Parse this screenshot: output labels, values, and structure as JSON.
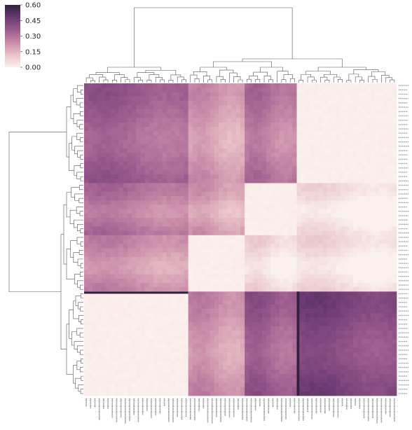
{
  "chart_data": {
    "type": "heatmap",
    "title": "",
    "xlabel": "",
    "ylabel": "",
    "clustered": true,
    "dendrograms": [
      "top",
      "left"
    ],
    "colormap": {
      "name": "cubehelix-light-purple",
      "stops": [
        "#faf0ec",
        "#e9c2c7",
        "#c98aa8",
        "#9c5a8e",
        "#6a3a72",
        "#33203f"
      ],
      "range": [
        0.0,
        0.6
      ]
    },
    "colorbar": {
      "ticks": [
        0.6,
        0.45,
        0.3,
        0.15,
        0.0
      ],
      "tick_labels": [
        "0.60",
        "0.45",
        "0.30",
        "0.15",
        "0.00"
      ]
    },
    "grid": false,
    "n_rows": 72,
    "n_cols": 72,
    "blocks": [
      {
        "name": "A",
        "size": 24
      },
      {
        "name": "B",
        "size": 13
      },
      {
        "name": "C",
        "size": 12
      },
      {
        "name": "D",
        "size": 23
      }
    ],
    "row_block_order": [
      "D",
      "C",
      "B",
      "A"
    ],
    "col_block_order": [
      "A",
      "B",
      "C",
      "D"
    ],
    "block_values": {
      "D": {
        "A": 0.34,
        "B": 0.2,
        "C": 0.28,
        "D": 0.0
      },
      "C": {
        "A": 0.28,
        "B": 0.18,
        "C": 0.0,
        "D": 0.02
      },
      "B": {
        "A": 0.22,
        "B": 0.0,
        "C": 0.04,
        "D": 0.03
      },
      "A": {
        "A": 0.0,
        "B": 0.22,
        "C": 0.35,
        "D": 0.42
      }
    },
    "highlight_line_value": 0.6
  }
}
